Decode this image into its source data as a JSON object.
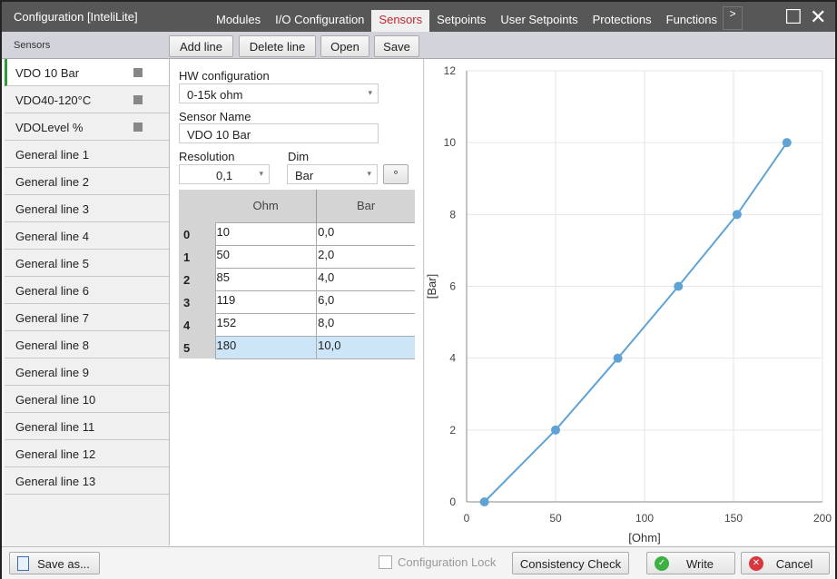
{
  "window": {
    "title": "Configuration [InteliLite]",
    "more": ">",
    "maximize_icon": "☐",
    "close_icon": "✕"
  },
  "tabs": [
    {
      "label": "Modules"
    },
    {
      "label": "I/O Configuration"
    },
    {
      "label": "Sensors",
      "active": true
    },
    {
      "label": "Setpoints"
    },
    {
      "label": "User Setpoints"
    },
    {
      "label": "Protections"
    },
    {
      "label": "Functions"
    }
  ],
  "toolbar": {
    "section": "Sensors",
    "add_line": "Add line",
    "delete_line": "Delete line",
    "open": "Open",
    "save": "Save"
  },
  "sidebar": {
    "items": [
      {
        "label": "VDO 10 Bar",
        "marker": true
      },
      {
        "label": "VDO40-120°C",
        "marker": true
      },
      {
        "label": "VDOLevel %",
        "marker": true
      },
      {
        "label": "General line 1"
      },
      {
        "label": "General line 2"
      },
      {
        "label": "General line 3"
      },
      {
        "label": "General line 4"
      },
      {
        "label": "General line 5"
      },
      {
        "label": "General line 6"
      },
      {
        "label": "General line 7"
      },
      {
        "label": "General line 8"
      },
      {
        "label": "General line 9"
      },
      {
        "label": "General line 10"
      },
      {
        "label": "General line 11"
      },
      {
        "label": "General line 12"
      },
      {
        "label": "General line 13"
      }
    ]
  },
  "form": {
    "hw_label": "HW configuration",
    "hw_value": "0-15k ohm",
    "name_label": "Sensor Name",
    "name_value": "VDO 10 Bar",
    "res_label": "Resolution",
    "res_value": "0,1",
    "dim_label": "Dim",
    "dim_value": "Bar",
    "degree_button": "°"
  },
  "table": {
    "headers": [
      "Ohm",
      "Bar"
    ],
    "rows": [
      [
        "0",
        "10",
        "0,0"
      ],
      [
        "1",
        "50",
        "2,0"
      ],
      [
        "2",
        "85",
        "4,0"
      ],
      [
        "3",
        "119",
        "6,0"
      ],
      [
        "4",
        "152",
        "8,0"
      ],
      [
        "5",
        "180",
        "10,0"
      ]
    ],
    "selected_row": 5
  },
  "chart_data": {
    "type": "line",
    "x": [
      10,
      50,
      85,
      119,
      152,
      180
    ],
    "y": [
      0,
      2,
      4,
      6,
      8,
      10
    ],
    "xlabel": "[Ohm]",
    "ylabel": "[Bar]",
    "xlim": [
      0,
      200
    ],
    "ylim": [
      0,
      12
    ],
    "xticks": [
      0,
      50,
      100,
      150,
      200
    ],
    "yticks": [
      0,
      2,
      4,
      6,
      8,
      10,
      12
    ],
    "grid": true,
    "color": "#5fa3d6"
  },
  "bottom": {
    "save_as": "Save as...",
    "config_lock": "Configuration Lock",
    "consistency": "Consistency Check",
    "write": "Write",
    "cancel": "Cancel"
  }
}
